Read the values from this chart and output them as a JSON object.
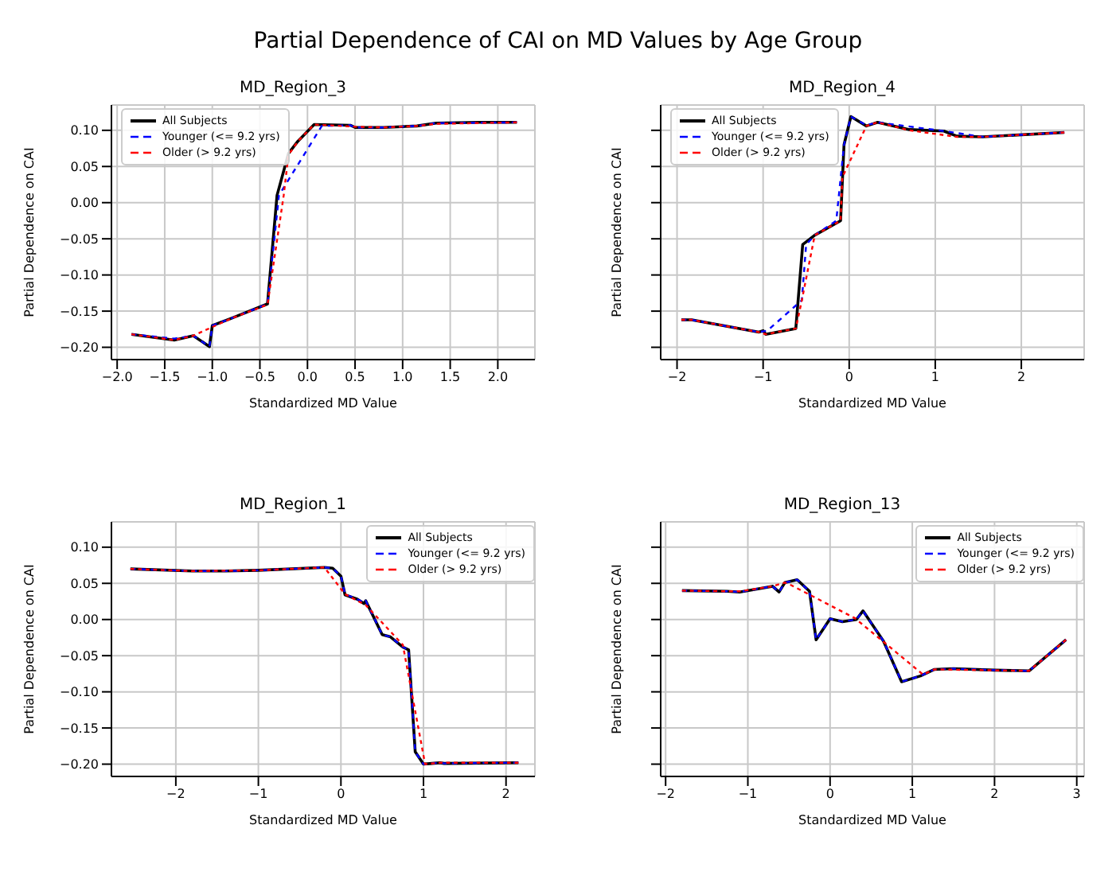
{
  "chart_data": [
    {
      "type": "line",
      "title": "MD_Region_3",
      "annotations": [
        "Partial Dependence of CAI on MD Values by Age Group"
      ],
      "xlabel": "Standardized MD Value",
      "ylabel": "Partial Dependence on CAI",
      "xlim": [
        -2.06,
        2.39
      ],
      "ylim": [
        -0.217,
        0.135
      ],
      "xticks": [
        {
          "value": -2,
          "label": "−2.0"
        },
        {
          "value": -1.5,
          "label": "−1.5"
        },
        {
          "value": -1,
          "label": "−1.0"
        },
        {
          "value": -0.5,
          "label": "−0.5"
        },
        {
          "value": 0,
          "label": "0.0"
        },
        {
          "value": 0.5,
          "label": "0.5"
        },
        {
          "value": 1,
          "label": "1.0"
        },
        {
          "value": 1.5,
          "label": "1.5"
        },
        {
          "value": 2,
          "label": "2.0"
        }
      ],
      "yticks": [
        {
          "value": -0.2,
          "label": "−0.20"
        },
        {
          "value": -0.15,
          "label": "−0.15"
        },
        {
          "value": -0.1,
          "label": "−0.10"
        },
        {
          "value": -0.05,
          "label": "−0.05"
        },
        {
          "value": 0,
          "label": "0.00"
        },
        {
          "value": 0.05,
          "label": "0.05"
        },
        {
          "value": 0.1,
          "label": "0.10"
        }
      ],
      "grid": true,
      "legend": "top left",
      "series": [
        {
          "name": "All Subjects",
          "color": "#000000",
          "line_style": "solid",
          "x": [
            -1.85,
            -1.4,
            -1.2,
            -1.03,
            -1.0,
            -0.8,
            -0.42,
            -0.32,
            -0.2,
            -0.1,
            0.07,
            0.45,
            0.5,
            0.8,
            1.15,
            1.35,
            1.8,
            2.2
          ],
          "values": [
            -0.182,
            -0.19,
            -0.184,
            -0.199,
            -0.17,
            -0.16,
            -0.14,
            0.01,
            0.068,
            0.085,
            0.108,
            0.107,
            0.104,
            0.104,
            0.106,
            0.11,
            0.111,
            0.111
          ]
        },
        {
          "name": "Younger (<= 9.2 yrs)",
          "color": "#0000ff",
          "line_style": "dashed",
          "x": [
            -1.85,
            -1.4,
            -1.2,
            -1.03,
            -1.0,
            -0.8,
            -0.42,
            -0.3,
            0.15,
            0.45,
            0.5,
            0.8,
            1.15,
            1.35,
            2.2
          ],
          "values": [
            -0.182,
            -0.188,
            -0.184,
            -0.199,
            -0.17,
            -0.16,
            -0.14,
            0.01,
            0.106,
            0.107,
            0.104,
            0.104,
            0.106,
            0.11,
            0.111
          ]
        },
        {
          "name": "Older (> 9.2 yrs)",
          "color": "#ff0000",
          "line_style": "dashed",
          "x": [
            -1.85,
            -1.4,
            -1.2,
            -1.0,
            -0.8,
            -0.42,
            -0.25,
            -0.2,
            -0.1,
            0.07,
            0.5,
            0.8,
            1.15,
            1.35,
            2.2
          ],
          "values": [
            -0.182,
            -0.19,
            -0.184,
            -0.172,
            -0.16,
            -0.141,
            0.01,
            0.066,
            0.085,
            0.108,
            0.105,
            0.104,
            0.106,
            0.109,
            0.111
          ]
        }
      ]
    },
    {
      "type": "line",
      "title": "MD_Region_4",
      "xlabel": "Standardized MD Value",
      "ylabel": "Partial Dependence on CAI",
      "xlim": [
        -2.19,
        2.73
      ],
      "ylim": [
        -0.217,
        0.135
      ],
      "tick_labels": "x",
      "xticks": [
        {
          "value": -2,
          "label": "−2"
        },
        {
          "value": -1,
          "label": "−1"
        },
        0,
        1,
        2
      ],
      "yticks": [
        -0.2,
        -0.15,
        -0.1,
        -0.05,
        0,
        0.05,
        0.1
      ],
      "grid": true,
      "legend": "top left",
      "series": [
        {
          "name": "All Subjects",
          "color": "#000000",
          "line_style": "solid",
          "x": [
            -1.95,
            -1.83,
            -1.05,
            -1.0,
            -0.97,
            -0.62,
            -0.54,
            -0.4,
            -0.1,
            -0.06,
            0.02,
            0.2,
            0.33,
            0.7,
            1.1,
            1.25,
            1.55,
            2.5
          ],
          "values": [
            -0.162,
            -0.162,
            -0.179,
            -0.177,
            -0.182,
            -0.174,
            -0.058,
            -0.045,
            -0.025,
            0.08,
            0.119,
            0.106,
            0.111,
            0.101,
            0.099,
            0.092,
            0.091,
            0.097
          ]
        },
        {
          "name": "Younger (<= 9.2 yrs)",
          "color": "#0000ff",
          "line_style": "dashed",
          "x": [
            -1.95,
            -1.83,
            -1.05,
            -0.95,
            -0.55,
            -0.5,
            -0.4,
            -0.15,
            -0.06,
            0.02,
            0.2,
            0.33,
            1.1,
            1.55,
            2.5
          ],
          "values": [
            -0.162,
            -0.162,
            -0.179,
            -0.177,
            -0.135,
            -0.058,
            -0.045,
            -0.025,
            0.08,
            0.119,
            0.107,
            0.111,
            0.099,
            0.091,
            0.097
          ]
        },
        {
          "name": "Older (> 9.2 yrs)",
          "color": "#ff0000",
          "line_style": "dashed",
          "x": [
            -1.95,
            -1.83,
            -1.05,
            -0.97,
            -0.62,
            -0.55,
            -0.4,
            -0.1,
            -0.08,
            0.2,
            0.33,
            0.7,
            1.25,
            1.55,
            2.5
          ],
          "values": [
            -0.162,
            -0.162,
            -0.179,
            -0.182,
            -0.174,
            -0.135,
            -0.045,
            -0.025,
            0.035,
            0.106,
            0.111,
            0.1,
            0.091,
            0.091,
            0.097
          ]
        }
      ]
    },
    {
      "type": "line",
      "title": "MD_Region_1",
      "xlabel": "Standardized MD Value",
      "ylabel": "Partial Dependence on CAI",
      "xlim": [
        -2.78,
        2.35
      ],
      "ylim": [
        -0.217,
        0.135
      ],
      "xticks": [
        {
          "value": -2,
          "label": "−2"
        },
        {
          "value": -1,
          "label": "−1"
        },
        0,
        1,
        2
      ],
      "yticks": [
        {
          "value": -0.2,
          "label": "−0.20"
        },
        {
          "value": -0.15,
          "label": "−0.15"
        },
        {
          "value": -0.1,
          "label": "−0.10"
        },
        {
          "value": -0.05,
          "label": "−0.05"
        },
        {
          "value": 0,
          "label": "0.00"
        },
        {
          "value": 0.05,
          "label": "0.05"
        },
        {
          "value": 0.1,
          "label": "0.10"
        }
      ],
      "grid": true,
      "legend": "top right",
      "series": [
        {
          "name": "All Subjects",
          "color": "#000000",
          "line_style": "solid",
          "x": [
            -2.55,
            -1.8,
            -1.4,
            -1.0,
            -0.2,
            -0.1,
            0.0,
            0.05,
            0.2,
            0.28,
            0.3,
            0.5,
            0.6,
            0.75,
            0.82,
            0.9,
            1.0,
            1.1,
            1.2,
            1.25,
            2.15
          ],
          "values": [
            0.07,
            0.067,
            0.067,
            0.068,
            0.072,
            0.071,
            0.06,
            0.034,
            0.028,
            0.022,
            0.026,
            -0.021,
            -0.024,
            -0.038,
            -0.042,
            -0.183,
            -0.2,
            -0.199,
            -0.198,
            -0.199,
            -0.198
          ]
        },
        {
          "name": "Younger (<= 9.2 yrs)",
          "color": "#0000ff",
          "line_style": "dashed",
          "x": [
            -2.55,
            -1.8,
            -1.4,
            -1.0,
            -0.2,
            -0.1,
            0.0,
            0.05,
            0.2,
            0.28,
            0.3,
            0.5,
            0.6,
            0.75,
            0.82,
            0.9,
            1.0,
            1.1,
            1.2,
            1.25,
            2.15
          ],
          "values": [
            0.07,
            0.067,
            0.067,
            0.068,
            0.072,
            0.071,
            0.06,
            0.035,
            0.028,
            0.023,
            0.026,
            -0.021,
            -0.024,
            -0.038,
            -0.042,
            -0.183,
            -0.2,
            -0.199,
            -0.198,
            -0.199,
            -0.198
          ]
        },
        {
          "name": "Older (> 9.2 yrs)",
          "color": "#ff0000",
          "line_style": "dashed",
          "x": [
            -2.55,
            -1.8,
            -1.0,
            -0.2,
            0.05,
            0.3,
            0.75,
            1.02,
            1.2,
            2.15
          ],
          "values": [
            0.07,
            0.067,
            0.068,
            0.072,
            0.035,
            0.02,
            -0.035,
            -0.2,
            -0.198,
            -0.198
          ]
        }
      ]
    },
    {
      "type": "line",
      "title": "MD_Region_13",
      "xlabel": "Standardized MD Value",
      "ylabel": "Partial Dependence on CAI",
      "xlim": [
        -2.06,
        3.09
      ],
      "ylim": [
        -0.217,
        0.135
      ],
      "tick_labels": "x",
      "xticks": [
        {
          "value": -2,
          "label": "−2"
        },
        {
          "value": -1,
          "label": "−1"
        },
        0,
        1,
        2,
        3
      ],
      "yticks": [
        -0.2,
        -0.15,
        -0.1,
        -0.05,
        0,
        0.05,
        0.1
      ],
      "grid": true,
      "legend": "top right",
      "series": [
        {
          "name": "All Subjects",
          "color": "#000000",
          "line_style": "solid",
          "x": [
            -1.8,
            -1.25,
            -1.1,
            -0.7,
            -0.62,
            -0.55,
            -0.4,
            -0.25,
            -0.17,
            0.0,
            0.15,
            0.32,
            0.4,
            0.65,
            0.87,
            1.1,
            1.27,
            1.5,
            2.0,
            2.42,
            2.87
          ],
          "values": [
            0.04,
            0.039,
            0.038,
            0.046,
            0.038,
            0.051,
            0.055,
            0.039,
            -0.028,
            0.001,
            -0.003,
            0.0,
            0.012,
            -0.03,
            -0.086,
            -0.078,
            -0.069,
            -0.068,
            -0.07,
            -0.071,
            -0.028
          ]
        },
        {
          "name": "Younger (<= 9.2 yrs)",
          "color": "#0000ff",
          "line_style": "dashed",
          "x": [
            -1.8,
            -1.25,
            -1.1,
            -0.7,
            -0.62,
            -0.55,
            -0.4,
            -0.25,
            -0.17,
            0.0,
            0.15,
            0.32,
            0.4,
            0.65,
            0.87,
            1.1,
            1.27,
            1.5,
            2.0,
            2.42,
            2.87
          ],
          "values": [
            0.04,
            0.039,
            0.038,
            0.046,
            0.038,
            0.051,
            0.055,
            0.039,
            -0.028,
            0.001,
            -0.003,
            0.0,
            0.012,
            -0.03,
            -0.086,
            -0.078,
            -0.069,
            -0.068,
            -0.07,
            -0.071,
            -0.028
          ]
        },
        {
          "name": "Older (> 9.2 yrs)",
          "color": "#ff0000",
          "line_style": "dashed",
          "x": [
            -1.8,
            -1.25,
            -1.1,
            -0.7,
            -0.55,
            -0.5,
            0.3,
            1.13,
            1.27,
            2.42,
            2.87
          ],
          "values": [
            0.04,
            0.039,
            0.039,
            0.046,
            0.051,
            0.049,
            0.002,
            -0.076,
            -0.069,
            -0.071,
            -0.028
          ]
        }
      ]
    }
  ]
}
